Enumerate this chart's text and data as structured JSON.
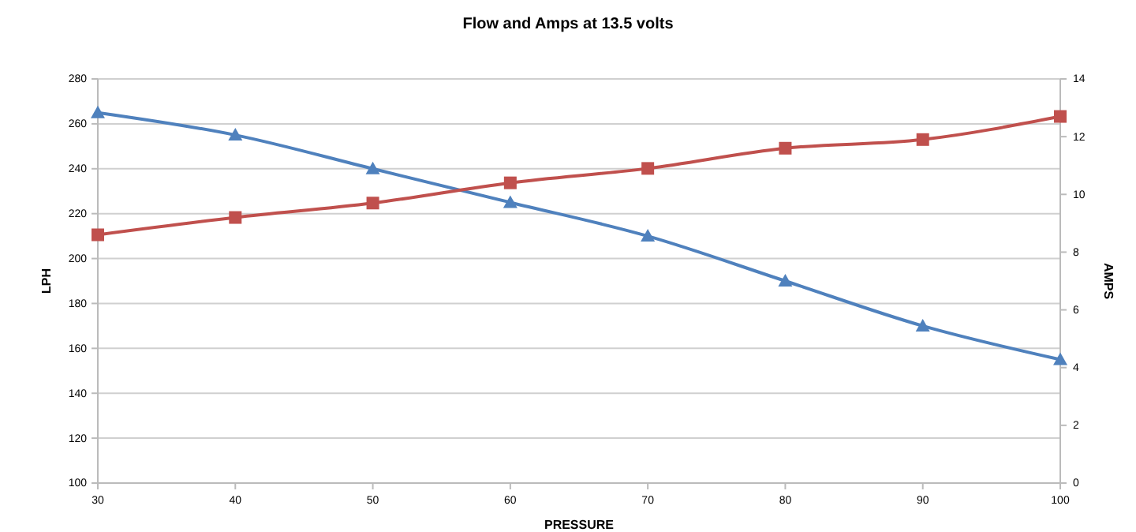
{
  "chart_data": {
    "type": "line",
    "title": "Flow and Amps at 13.5 volts",
    "xlabel": "PRESSURE",
    "ylabel": "LPH",
    "y2label": "AMPS",
    "x": [
      30,
      40,
      50,
      60,
      70,
      80,
      90,
      100
    ],
    "series": [
      {
        "color": "#4f81bd",
        "marker": "triangle",
        "values": [
          265,
          255,
          240,
          225,
          210,
          190,
          170,
          155
        ]
      },
      {
        "color": "#c0504d",
        "marker": "square",
        "axis": "y2",
        "values": [
          8.6,
          9.2,
          9.7,
          10.4,
          10.9,
          11.6,
          11.9,
          12.7
        ]
      }
    ],
    "xlim": [
      30,
      100
    ],
    "xticks": [
      30,
      40,
      50,
      60,
      70,
      80,
      90,
      100
    ],
    "ylim": [
      100,
      280
    ],
    "yticks": [
      100,
      120,
      140,
      160,
      180,
      200,
      220,
      240,
      260,
      280
    ],
    "y2lim": [
      0,
      14
    ],
    "y2ticks": [
      0,
      2,
      4,
      6,
      8,
      10,
      12,
      14
    ],
    "grid": "y"
  }
}
